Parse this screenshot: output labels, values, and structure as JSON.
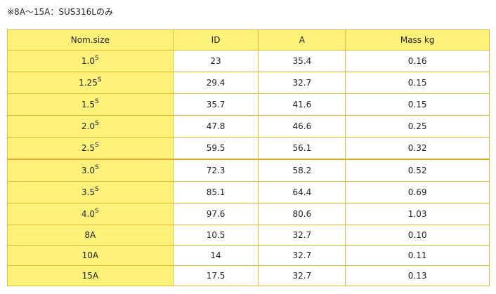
{
  "note": "※8A～15A：SUS316Lのみ",
  "colors": {
    "header_bg": "#fff27a",
    "border": "#e2b936"
  },
  "table": {
    "headers": [
      "Nom.size",
      "ID",
      "A",
      "Mass kg"
    ],
    "rows": [
      {
        "size": "1.0",
        "sup": "S",
        "id": "23",
        "a": "35.4",
        "mass": "0.16"
      },
      {
        "size": "1.25",
        "sup": "S",
        "id": "29.4",
        "a": "32.7",
        "mass": "0.15"
      },
      {
        "size": "1.5",
        "sup": "S",
        "id": "35.7",
        "a": "41.6",
        "mass": "0.15"
      },
      {
        "size": "2.0",
        "sup": "S",
        "id": "47.8",
        "a": "46.6",
        "mass": "0.25"
      },
      {
        "size": "2.5",
        "sup": "S",
        "id": "59.5",
        "a": "56.1",
        "mass": "0.32"
      },
      {
        "size": "3.0",
        "sup": "S",
        "id": "72.3",
        "a": "58.2",
        "mass": "0.52"
      },
      {
        "size": "3.5",
        "sup": "S",
        "id": "85.1",
        "a": "64.4",
        "mass": "0.69"
      },
      {
        "size": "4.0",
        "sup": "S",
        "id": "97.6",
        "a": "80.6",
        "mass": "1.03"
      },
      {
        "size": "8A",
        "sup": "",
        "id": "10.5",
        "a": "32.7",
        "mass": "0.10"
      },
      {
        "size": "10A",
        "sup": "",
        "id": "14",
        "a": "32.7",
        "mass": "0.11"
      },
      {
        "size": "15A",
        "sup": "",
        "id": "17.5",
        "a": "32.7",
        "mass": "0.13"
      }
    ]
  }
}
